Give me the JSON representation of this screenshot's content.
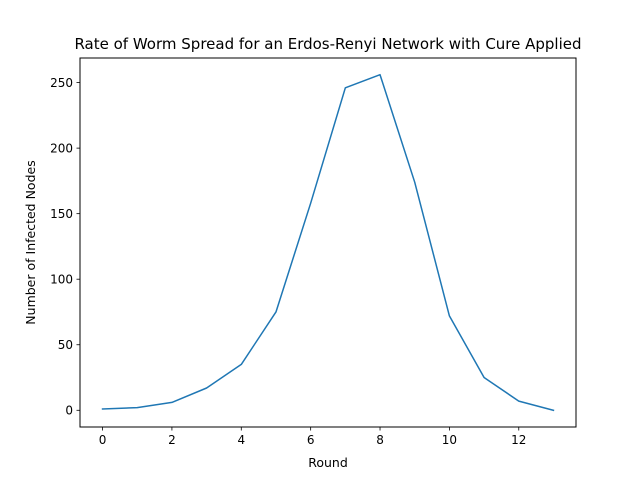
{
  "chart_data": {
    "type": "line",
    "title": "Rate of Worm Spread for an Erdos-Renyi Network with Cure Applied",
    "xlabel": "Round",
    "ylabel": "Number of Infected Nodes",
    "xlim": [
      -0.65,
      13.65
    ],
    "ylim": [
      -12.75,
      268.75
    ],
    "xticks": [
      0,
      2,
      4,
      6,
      8,
      10,
      12
    ],
    "yticks": [
      0,
      50,
      100,
      150,
      200,
      250
    ],
    "grid": false,
    "legend": "none",
    "series": [
      {
        "color": "#1f77b4",
        "x": [
          0,
          1,
          2,
          3,
          4,
          5,
          6,
          7,
          8,
          9,
          10,
          11,
          12,
          13
        ],
        "y": [
          1,
          2,
          6,
          17,
          35,
          75,
          158,
          246,
          256,
          174,
          72,
          25,
          7,
          0
        ]
      }
    ]
  }
}
